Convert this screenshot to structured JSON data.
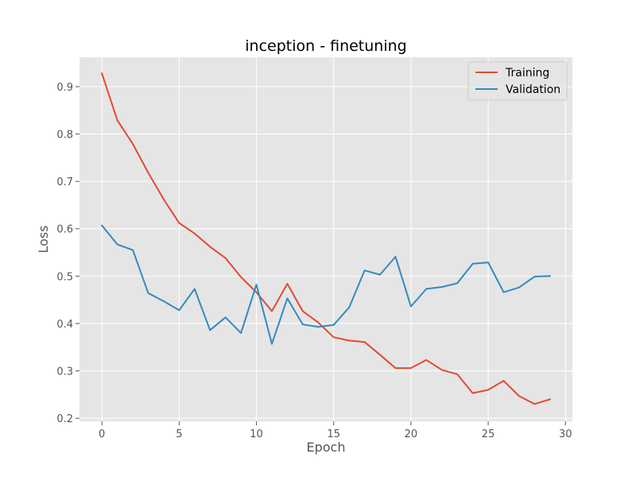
{
  "chart_data": {
    "type": "line",
    "title": "inception - finetuning",
    "xlabel": "Epoch",
    "ylabel": "Loss",
    "xlim": [
      -1.45,
      30.45
    ],
    "ylim": [
      0.1935,
      0.962
    ],
    "xticks": [
      0,
      5,
      10,
      15,
      20,
      25,
      30
    ],
    "yticks": [
      0.2,
      0.3,
      0.4,
      0.5,
      0.6,
      0.7,
      0.8,
      0.9
    ],
    "xtick_labels": [
      "0",
      "5",
      "10",
      "15",
      "20",
      "25",
      "30"
    ],
    "ytick_labels": [
      "0.2",
      "0.3",
      "0.4",
      "0.5",
      "0.6",
      "0.7",
      "0.8",
      "0.9"
    ],
    "grid": true,
    "legend": "top-right",
    "x": [
      0,
      1,
      2,
      3,
      4,
      5,
      6,
      7,
      8,
      9,
      10,
      11,
      12,
      13,
      14,
      15,
      16,
      17,
      18,
      19,
      20,
      21,
      22,
      23,
      24,
      25,
      26,
      27,
      28,
      29
    ],
    "series": [
      {
        "name": "Training",
        "color": "#e24a33",
        "values": [
          0.928,
          0.829,
          0.779,
          0.718,
          0.662,
          0.612,
          0.59,
          0.562,
          0.538,
          0.498,
          0.466,
          0.426,
          0.484,
          0.426,
          0.402,
          0.371,
          0.364,
          0.361,
          0.334,
          0.306,
          0.306,
          0.323,
          0.302,
          0.293,
          0.253,
          0.26,
          0.279,
          0.247,
          0.23,
          0.24
        ]
      },
      {
        "name": "Validation",
        "color": "#348abd",
        "values": [
          0.607,
          0.567,
          0.555,
          0.464,
          0.447,
          0.428,
          0.473,
          0.386,
          0.413,
          0.38,
          0.482,
          0.357,
          0.453,
          0.398,
          0.393,
          0.397,
          0.434,
          0.512,
          0.503,
          0.541,
          0.436,
          0.473,
          0.477,
          0.485,
          0.526,
          0.529,
          0.466,
          0.476,
          0.499,
          0.5
        ]
      }
    ]
  }
}
